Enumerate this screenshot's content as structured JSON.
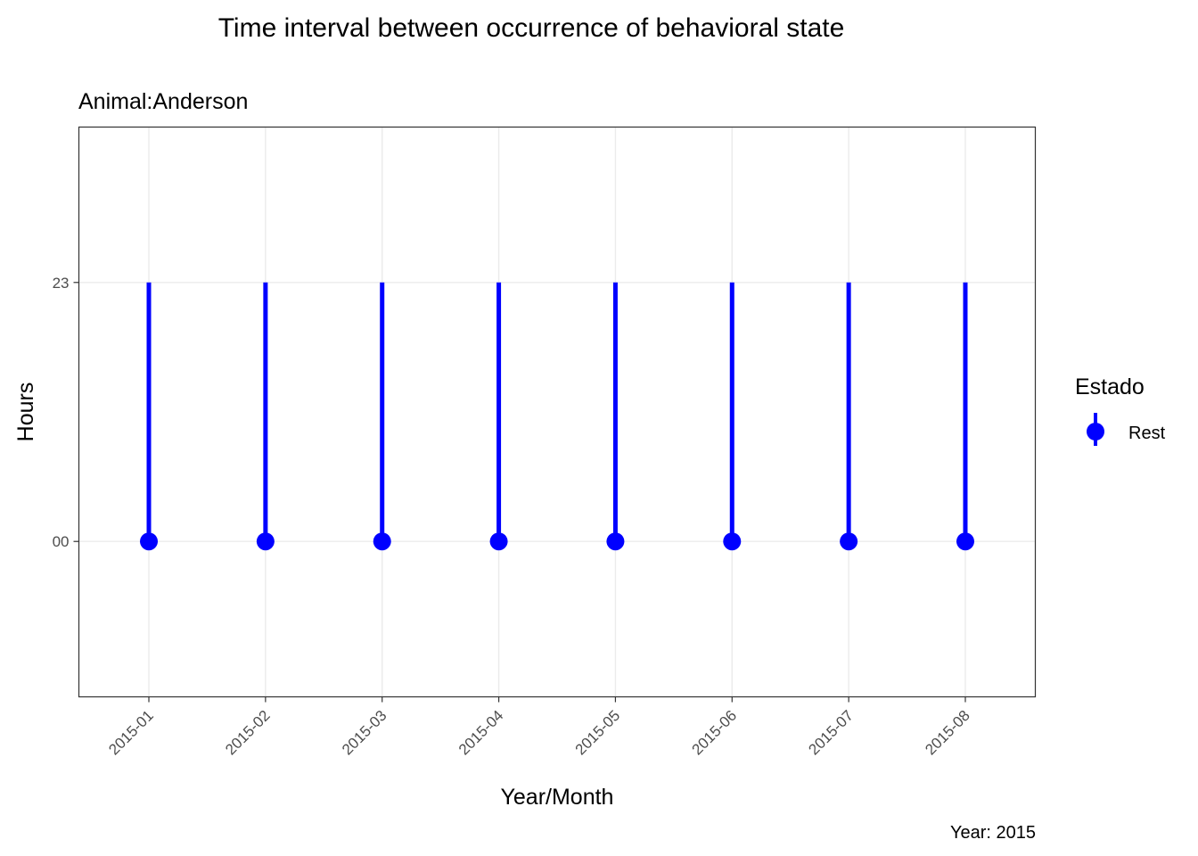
{
  "chart_data": {
    "type": "line",
    "title": "Time interval between occurrence of behavioral state",
    "subtitle": "Animal:Anderson",
    "xlabel": "Year/Month",
    "ylabel": "Hours",
    "caption": "Year: 2015",
    "categories": [
      "2015-01",
      "2015-02",
      "2015-03",
      "2015-04",
      "2015-05",
      "2015-06",
      "2015-07",
      "2015-08"
    ],
    "y_ticks": [
      {
        "value": 0,
        "label": "00"
      },
      {
        "value": 23,
        "label": "23"
      }
    ],
    "ylim": [
      -13.8,
      36.8
    ],
    "grid": true,
    "legend": {
      "title": "Estado",
      "placement": "right",
      "entries": [
        {
          "name": "Rest",
          "color": "#0000ff"
        }
      ]
    },
    "series": [
      {
        "name": "Rest",
        "color": "#0000ff",
        "points": [
          0,
          0,
          0,
          0,
          0,
          0,
          0,
          0
        ],
        "range_low": [
          0,
          0,
          0,
          0,
          0,
          0,
          0,
          0
        ],
        "range_high": [
          23,
          23,
          23,
          23,
          23,
          23,
          23,
          23
        ]
      }
    ]
  }
}
